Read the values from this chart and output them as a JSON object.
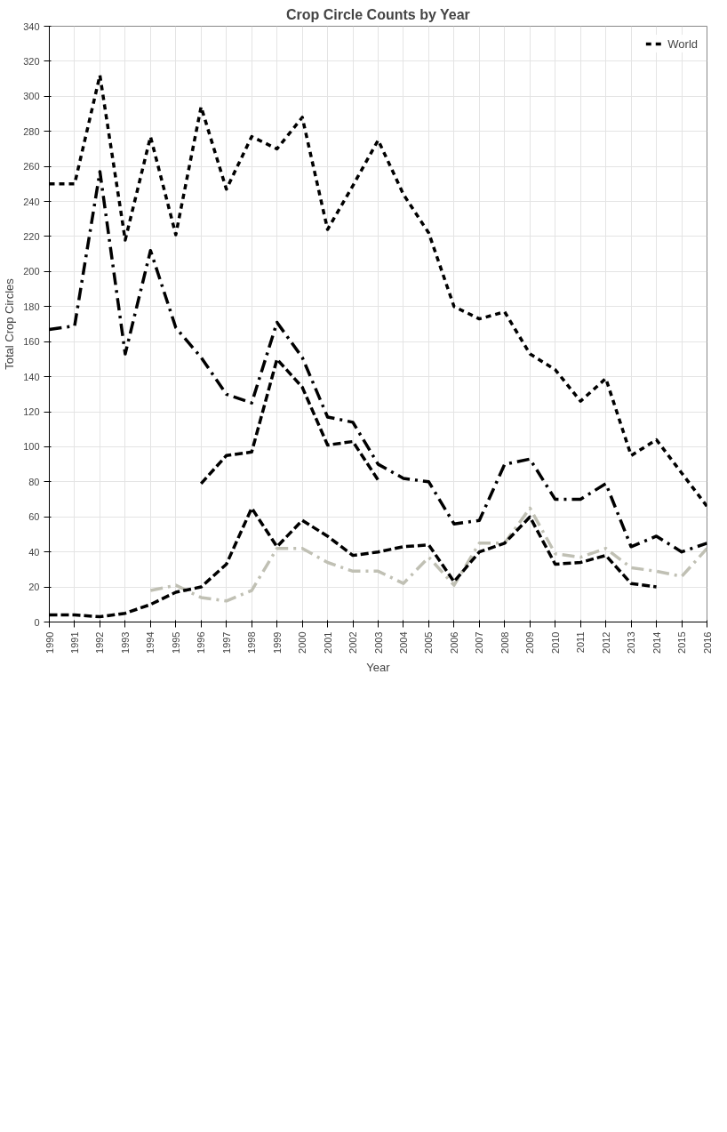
{
  "chart_data": {
    "type": "line",
    "title": "Crop Circle Counts by Year",
    "xlabel": "Year",
    "ylabel": "Total Crop Circles",
    "x": [
      1990,
      1991,
      1992,
      1993,
      1994,
      1995,
      1996,
      1997,
      1998,
      1999,
      2000,
      2001,
      2002,
      2003,
      2004,
      2005,
      2006,
      2007,
      2008,
      2009,
      2010,
      2011,
      2012,
      2013,
      2014,
      2015,
      2016
    ],
    "series": [
      {
        "color": "#000000",
        "line_style": "dashdot",
        "values": [
          167,
          169,
          257,
          153,
          212,
          168,
          151,
          130,
          125,
          171,
          151,
          117,
          114,
          90,
          82,
          80,
          56,
          58,
          90,
          93,
          70,
          70,
          79,
          43,
          49,
          40,
          45
        ]
      },
      {
        "color": "#c0c0b4",
        "line_style": "dashdot",
        "values": [
          null,
          null,
          null,
          null,
          18,
          21,
          14,
          12,
          18,
          42,
          42,
          34,
          29,
          29,
          22,
          37,
          21,
          45,
          45,
          65,
          39,
          37,
          42,
          31,
          29,
          26,
          42
        ]
      },
      {
        "color": "#000000",
        "line_style": "longdash",
        "values": [
          null,
          null,
          null,
          null,
          null,
          null,
          79,
          95,
          97,
          150,
          134,
          101,
          103,
          81,
          null,
          null,
          null,
          null,
          null,
          null,
          null,
          null,
          null,
          null,
          null,
          null,
          null
        ]
      },
      {
        "name": "World",
        "color": "#000000",
        "line_style": "dashed",
        "values": [
          250,
          250,
          312,
          218,
          277,
          221,
          294,
          247,
          277,
          270,
          288,
          224,
          249,
          275,
          244,
          222,
          180,
          173,
          177,
          153,
          144,
          126,
          139,
          95,
          104,
          85,
          66
        ]
      },
      {
        "color": "#000000",
        "line_style": "longdash",
        "values": [
          4,
          4,
          3,
          5,
          10,
          17,
          20,
          33,
          65,
          43,
          58,
          49,
          38,
          40,
          43,
          44,
          23,
          40,
          45,
          60,
          33,
          34,
          38,
          22,
          20,
          null,
          null
        ]
      }
    ],
    "xlim": [
      1990,
      2016
    ],
    "xticks": [
      1990,
      1991,
      1992,
      1993,
      1994,
      1995,
      1996,
      1997,
      1998,
      1999,
      2000,
      2001,
      2002,
      2003,
      2004,
      2005,
      2006,
      2007,
      2008,
      2009,
      2010,
      2011,
      2012,
      2013,
      2014,
      2015,
      2016
    ],
    "ylim": [
      0,
      340
    ],
    "yticks": [
      0,
      20,
      40,
      60,
      80,
      100,
      120,
      140,
      160,
      180,
      200,
      220,
      240,
      260,
      280,
      300,
      320,
      340
    ],
    "grid": true,
    "legend": "top right"
  }
}
